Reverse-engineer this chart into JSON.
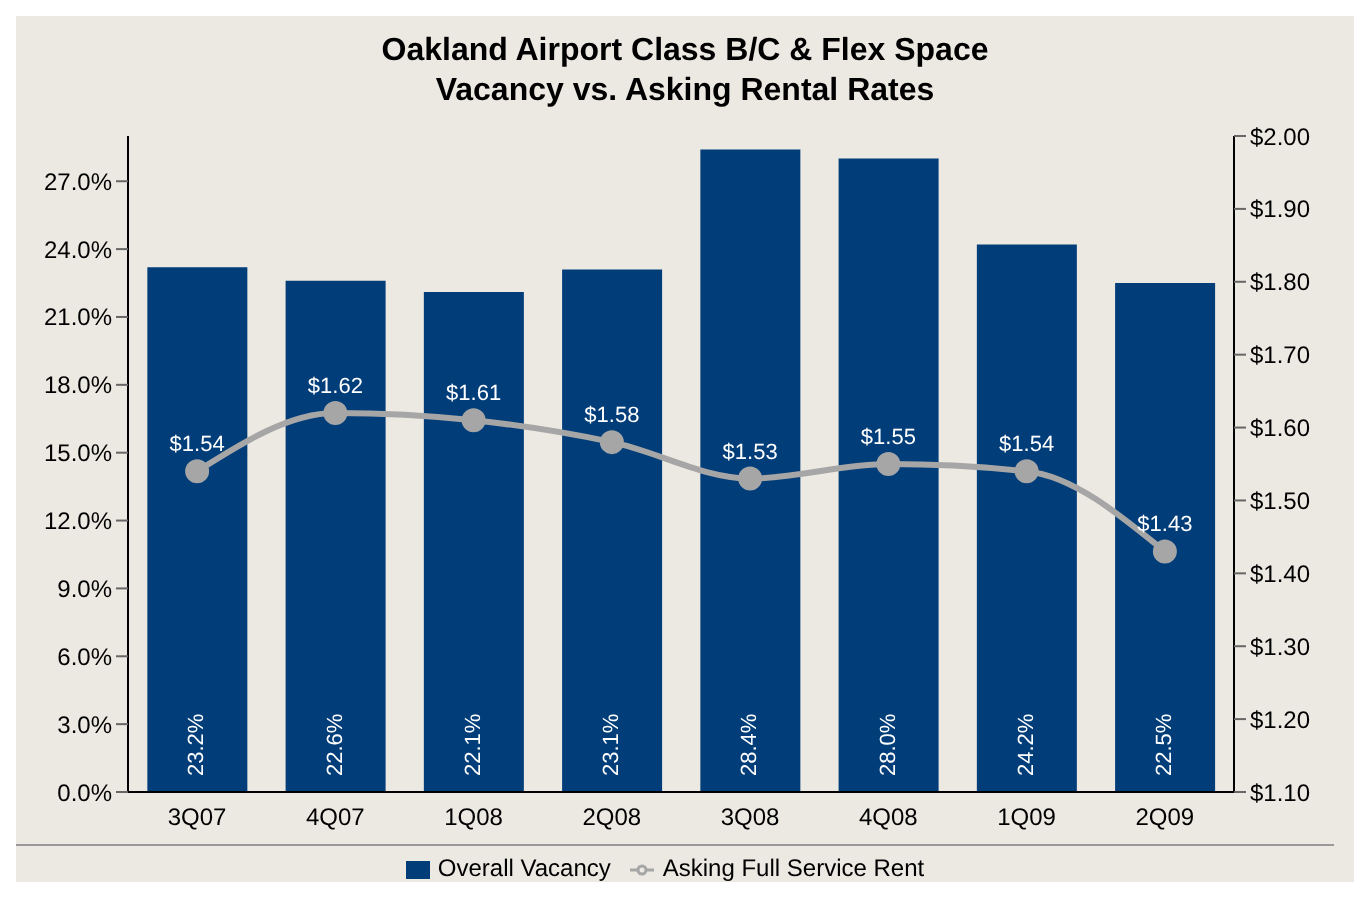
{
  "chart_data": {
    "type": "bar",
    "title": "Oakland Airport Class B/C & Flex Space\nVacancy vs. Asking Rental Rates",
    "categories": [
      "3Q07",
      "4Q07",
      "1Q08",
      "2Q08",
      "3Q08",
      "4Q08",
      "1Q09",
      "2Q09"
    ],
    "series": [
      {
        "name": "Overall Vacancy",
        "color": "#003d79",
        "values": [
          23.2,
          22.6,
          22.1,
          23.1,
          28.4,
          28.0,
          24.2,
          22.5
        ],
        "value_labels": [
          "23.2%",
          "22.6%",
          "22.1%",
          "23.1%",
          "28.4%",
          "28.0%",
          "24.2%",
          "22.5%"
        ]
      },
      {
        "name": "Asking Full Service Rent",
        "type": "line",
        "axis": "y2",
        "color": "#a6a6a6",
        "values": [
          1.54,
          1.62,
          1.61,
          1.58,
          1.53,
          1.55,
          1.54,
          1.43
        ],
        "value_labels": [
          "$1.54",
          "$1.62",
          "$1.61",
          "$1.58",
          "$1.53",
          "$1.55",
          "$1.54",
          "$1.43"
        ]
      }
    ],
    "ylim": [
      0,
      29
    ],
    "yticks": [
      {
        "value": 0,
        "label": "0.0%"
      },
      {
        "value": 3,
        "label": "3.0%"
      },
      {
        "value": 6,
        "label": "6.0%"
      },
      {
        "value": 9,
        "label": "9.0%"
      },
      {
        "value": 12,
        "label": "12.0%"
      },
      {
        "value": 15,
        "label": "15.0%"
      },
      {
        "value": 18,
        "label": "18.0%"
      },
      {
        "value": 21,
        "label": "21.0%"
      },
      {
        "value": 24,
        "label": "24.0%"
      },
      {
        "value": 27,
        "label": "27.0%"
      }
    ],
    "y2lim": [
      1.1,
      2.0
    ],
    "y2ticks": [
      {
        "value": 1.1,
        "label": "$1.10"
      },
      {
        "value": 1.2,
        "label": "$1.20"
      },
      {
        "value": 1.3,
        "label": "$1.30"
      },
      {
        "value": 1.4,
        "label": "$1.40"
      },
      {
        "value": 1.5,
        "label": "$1.50"
      },
      {
        "value": 1.6,
        "label": "$1.60"
      },
      {
        "value": 1.7,
        "label": "$1.70"
      },
      {
        "value": 1.8,
        "label": "$1.80"
      },
      {
        "value": 1.9,
        "label": "$1.90"
      },
      {
        "value": 2.0,
        "label": "$2.00"
      }
    ],
    "grid": false,
    "legend": "bottom",
    "marker": "circle",
    "line_style": "solid"
  }
}
